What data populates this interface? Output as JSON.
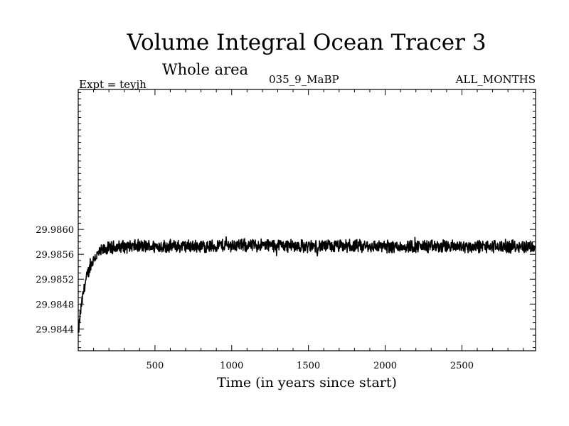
{
  "header": {
    "title": "Volume Integral Ocean Tracer 3",
    "subtitle": "Whole area",
    "expt": "Expt = teyjh",
    "run": "035_9_MaBP",
    "months": "ALL_MONTHS"
  },
  "chart_data": {
    "type": "line",
    "title": "Volume Integral Ocean Tracer 3",
    "subtitle": "Whole area",
    "xlabel": "Time (in years since start)",
    "ylabel": "",
    "xlim": [
      0,
      2980
    ],
    "ylim": [
      29.98405,
      29.98825
    ],
    "xticks": [
      500,
      1000,
      1500,
      2000,
      2500
    ],
    "yticks": [
      29.9844,
      29.9848,
      29.9852,
      29.9856,
      29.986
    ],
    "ytick_labels": [
      "29.9844",
      "29.9848",
      "29.9852",
      "29.9856",
      "29.9860"
    ],
    "grid": false,
    "line_color": "#000000",
    "series_profile": {
      "start_value": 29.98432,
      "plateau_value": 29.98573,
      "spinup_years": 160,
      "noise_amplitude": 0.00012,
      "sample_step_years": 2
    }
  }
}
